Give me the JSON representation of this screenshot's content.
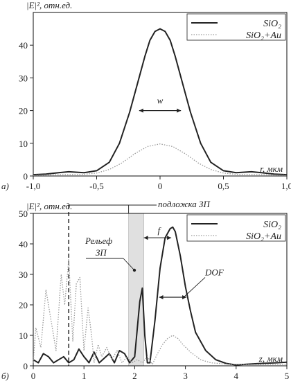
{
  "chart_data": [
    {
      "type": "line",
      "panel_label": "а)",
      "ylabel": "|E|², отн.ед.",
      "xlabel": "r, мкм",
      "xlim": [
        -1.0,
        1.0
      ],
      "ylim": [
        0,
        50
      ],
      "xticks": [
        -1.0,
        -0.5,
        0,
        0.5,
        1.0
      ],
      "xtick_labels": [
        "-1,0",
        "-0,5",
        "0",
        "0,5",
        "1,0"
      ],
      "yticks": [
        0,
        10,
        20,
        30,
        40
      ],
      "ytick_labels": [
        "0",
        "10",
        "20",
        "30",
        "40"
      ],
      "legend_position": "top-right",
      "annotations": [
        {
          "text": "w"
        }
      ],
      "series": [
        {
          "name": "SiO₂",
          "style": "solid",
          "color": "#222222",
          "x": [
            -1.0,
            -0.9,
            -0.8,
            -0.72,
            -0.6,
            -0.5,
            -0.4,
            -0.32,
            -0.24,
            -0.18,
            -0.12,
            -0.08,
            -0.04,
            0.0,
            0.04,
            0.08,
            0.12,
            0.18,
            0.24,
            0.32,
            0.4,
            0.5,
            0.6,
            0.72,
            0.8,
            0.9,
            1.0
          ],
          "y": [
            0.4,
            0.6,
            1.0,
            1.3,
            1.0,
            1.6,
            4.2,
            10.0,
            19.5,
            28.0,
            36.5,
            41.5,
            44.2,
            45.0,
            44.2,
            41.5,
            36.5,
            28.0,
            19.5,
            10.0,
            4.2,
            1.6,
            1.0,
            1.3,
            1.0,
            0.6,
            0.4
          ]
        },
        {
          "name": "SiO₂+Au",
          "style": "dotted",
          "color": "#999999",
          "x": [
            -1.0,
            -0.8,
            -0.6,
            -0.5,
            -0.4,
            -0.3,
            -0.2,
            -0.1,
            0.0,
            0.1,
            0.2,
            0.3,
            0.4,
            0.5,
            0.6,
            0.8,
            1.0
          ],
          "y": [
            0.2,
            0.4,
            0.5,
            0.9,
            2.0,
            4.0,
            6.8,
            9.0,
            9.8,
            9.0,
            6.8,
            4.0,
            2.0,
            0.9,
            0.5,
            0.4,
            0.2
          ]
        }
      ]
    },
    {
      "type": "line",
      "panel_label": "б)",
      "ylabel": "|E|², отн.ед.",
      "xlabel": "z, мкм",
      "xlim": [
        0,
        5
      ],
      "ylim": [
        0,
        50
      ],
      "xticks": [
        0,
        1,
        2,
        3,
        4,
        5
      ],
      "xtick_labels": [
        "0",
        "1",
        "2",
        "3",
        "4",
        "5"
      ],
      "yticks": [
        0,
        10,
        20,
        30,
        40,
        50
      ],
      "ytick_labels": [
        "0",
        "10",
        "20",
        "30",
        "40",
        "50"
      ],
      "legend_position": "top-right",
      "shaded_region": [
        1.88,
        2.18
      ],
      "dashed_line_x": 0.7,
      "annotations": [
        {
          "text": "подложка ЗП"
        },
        {
          "text": "Рельеф"
        },
        {
          "text": "ЗП"
        },
        {
          "text": "f"
        },
        {
          "text": "DOF"
        }
      ],
      "series": [
        {
          "name": "SiO₂",
          "style": "solid",
          "color": "#222222",
          "x": [
            0.0,
            0.1,
            0.2,
            0.3,
            0.4,
            0.5,
            0.6,
            0.7,
            0.8,
            0.9,
            1.0,
            1.1,
            1.2,
            1.3,
            1.4,
            1.5,
            1.6,
            1.7,
            1.8,
            1.9,
            2.0,
            2.1,
            2.15,
            2.2,
            2.25,
            2.3,
            2.4,
            2.5,
            2.6,
            2.7,
            2.75,
            2.8,
            2.9,
            3.0,
            3.1,
            3.2,
            3.4,
            3.6,
            3.8,
            4.0,
            4.2,
            4.5,
            4.8,
            5.0
          ],
          "y": [
            2.0,
            1.0,
            4.0,
            3.0,
            1.0,
            2.0,
            3.0,
            1.0,
            2.0,
            5.5,
            3.0,
            1.0,
            4.5,
            1.0,
            2.5,
            4.0,
            1.0,
            5.0,
            4.0,
            1.0,
            3.0,
            21.0,
            25.5,
            10.0,
            1.0,
            1.0,
            15.0,
            32.0,
            42.0,
            45.0,
            45.5,
            44.0,
            36.0,
            26.0,
            18.0,
            11.0,
            5.0,
            2.0,
            0.8,
            0.3,
            0.5,
            0.8,
            1.0,
            1.2
          ]
        },
        {
          "name": "SiO₂+Au",
          "style": "dotted",
          "color": "#999999",
          "x": [
            0.0,
            0.05,
            0.15,
            0.25,
            0.35,
            0.45,
            0.55,
            0.62,
            0.7,
            0.78,
            0.85,
            0.92,
            1.0,
            1.08,
            1.15,
            1.2,
            1.28,
            1.35,
            1.45,
            1.55,
            1.65,
            1.75,
            1.85,
            1.95,
            2.05,
            2.15,
            2.25,
            2.35,
            2.45,
            2.55,
            2.65,
            2.75,
            2.85,
            2.95,
            3.1,
            3.3,
            3.5,
            3.8,
            4.2,
            4.6,
            5.0
          ],
          "y": [
            1.0,
            12.5,
            6.0,
            25.0,
            15.0,
            5.0,
            30.0,
            20.0,
            35.0,
            8.0,
            27.0,
            29.0,
            5.0,
            19.0,
            10.0,
            1.0,
            7.0,
            3.0,
            6.0,
            2.0,
            5.0,
            1.0,
            3.0,
            1.0,
            2.0,
            1.0,
            3.0,
            0.5,
            4.0,
            7.0,
            9.0,
            10.0,
            9.0,
            7.0,
            4.5,
            2.0,
            1.0,
            0.6,
            0.4,
            0.4,
            0.5
          ]
        }
      ]
    }
  ]
}
